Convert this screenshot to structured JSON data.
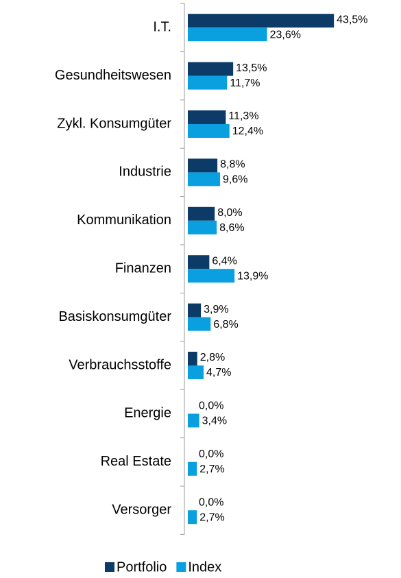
{
  "chart_data": {
    "type": "bar",
    "orientation": "horizontal",
    "categories": [
      "I.T.",
      "Gesundheitswesen",
      "Zykl. Konsumgüter",
      "Industrie",
      "Kommunikation",
      "Finanzen",
      "Basiskonsumgüter",
      "Verbrauchsstoffe",
      "Energie",
      "Real Estate",
      "Versorger"
    ],
    "series": [
      {
        "name": "Portfolio",
        "color": "#0b3b66",
        "values": [
          43.5,
          13.5,
          11.3,
          8.8,
          8.0,
          6.4,
          3.9,
          2.8,
          0.0,
          0.0,
          0.0
        ],
        "value_labels": [
          "43,5%",
          "13,5%",
          "11,3%",
          "8,8%",
          "8,0%",
          "6,4%",
          "3,9%",
          "2,8%",
          "0,0%",
          "0,0%",
          "0,0%"
        ]
      },
      {
        "name": "Index",
        "color": "#0aa0e0",
        "values": [
          23.6,
          11.7,
          12.4,
          9.6,
          8.6,
          13.9,
          6.8,
          4.7,
          3.4,
          2.7,
          2.7
        ],
        "value_labels": [
          "23,6%",
          "11,7%",
          "12,4%",
          "9,6%",
          "8,6%",
          "13,9%",
          "6,8%",
          "4,7%",
          "3,4%",
          "2,7%",
          "2,7%"
        ]
      }
    ],
    "legend": "bottom"
  }
}
